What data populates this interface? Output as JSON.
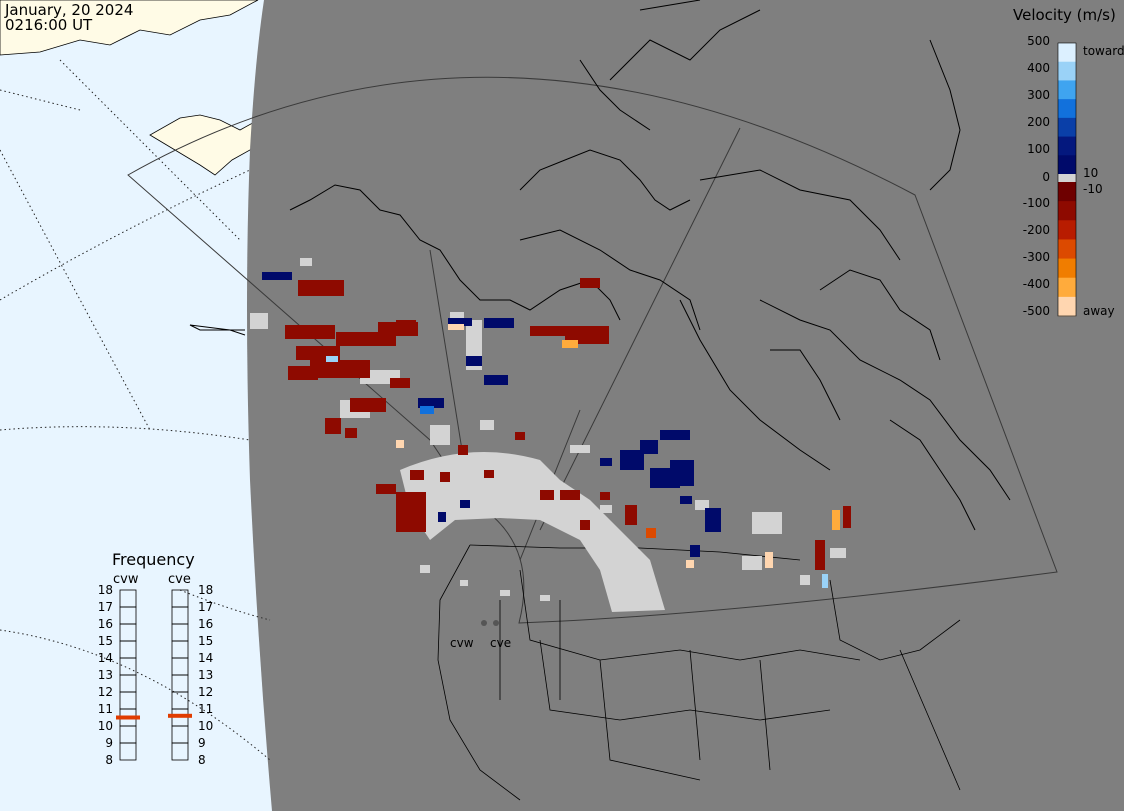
{
  "header": {
    "date": "January, 20 2024",
    "time": "0216:00 UT"
  },
  "velocity_scale": {
    "title": "Velocity (m/s)",
    "tick_labels": [
      "500",
      "400",
      "300",
      "200",
      "100",
      "10",
      "0",
      "-10",
      "-100",
      "-200",
      "-300",
      "-400",
      "-500"
    ],
    "toward_label": "toward",
    "away_label": "away",
    "toward_colors": [
      "#dcf0ff",
      "#9ad2f7",
      "#3fa4f0",
      "#1271dc",
      "#0a3fa8",
      "#04187e",
      "#000a6a"
    ],
    "away_colors": [
      "#6e0000",
      "#8e0a00",
      "#b81c00",
      "#dc4a00",
      "#f07d00",
      "#ffab3c",
      "#ffd6b0"
    ],
    "ground_scatter_color": "#d3d3d3"
  },
  "frequency_panel": {
    "title": "Frequency",
    "radars": [
      "cvw",
      "cve"
    ],
    "scale_labels": [
      "18",
      "17",
      "16",
      "15",
      "14",
      "13",
      "12",
      "11",
      "10",
      "9",
      "8"
    ],
    "values_mhz": [
      10.5,
      10.6
    ],
    "marker_color": "#e03c00"
  },
  "map": {
    "ocean_color": "#e8f5ff",
    "land_color": "#fffbe6",
    "night_color": "#7f7f7f",
    "radar_labels": [
      "cvw",
      "cve"
    ]
  }
}
